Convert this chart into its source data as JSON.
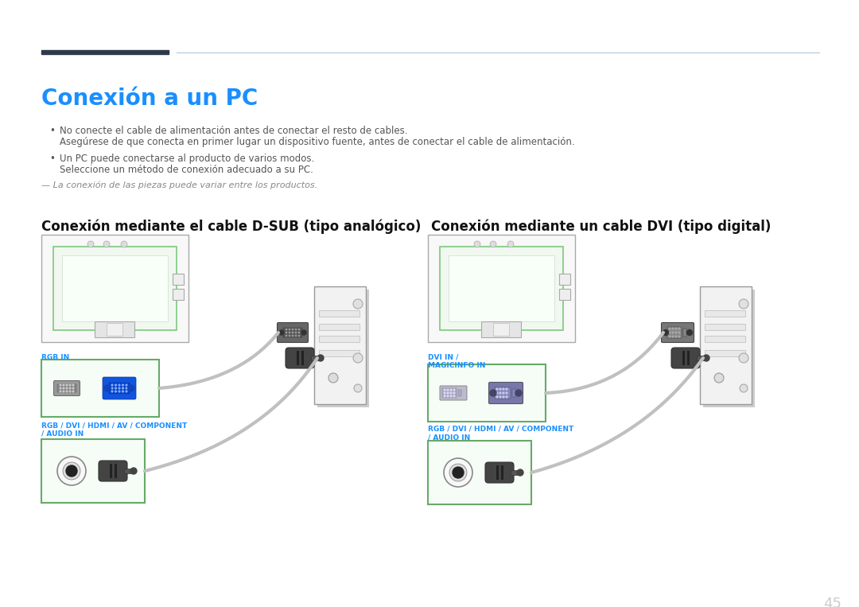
{
  "bg_color": "#ffffff",
  "title": "Conexión a un PC",
  "title_color": "#1a8fff",
  "title_fontsize": 20,
  "header_line_dark_color": "#2d3a4a",
  "header_line_light_color": "#b0c8d8",
  "bullet_text_color": "#555555",
  "bullet_fontsize": 8.5,
  "note_color": "#888888",
  "note_fontsize": 8,
  "section1_title": "Conexión mediante el cable D-SUB (tipo analógico)",
  "section2_title": "Conexión mediante un cable DVI (tipo digital)",
  "section_title_fontsize": 12,
  "section_title_color": "#111111",
  "label_rgb_in": "RGB IN",
  "label_rgb_dvi": "RGB / DVI / HDMI / AV / COMPONENT\n/ AUDIO IN",
  "label_dvi_in": "DVI IN /\nMAGICINFO IN",
  "label_rgb_dvi2": "RGB / DVI / HDMI / AV / COMPONENT\n/ AUDIO IN",
  "label_color": "#1a8fff",
  "label_fontsize": 6.5,
  "page_number": "45",
  "page_number_color": "#cccccc",
  "page_number_fontsize": 13,
  "bullet1_line1": "No conecte el cable de alimentación antes de conectar el resto de cables.",
  "bullet1_line2": "Asegúrese de que conecta en primer lugar un dispositivo fuente, antes de conectar el cable de alimentación.",
  "bullet2_line1": "Un PC puede conectarse al producto de varios modos.",
  "bullet2_line2": "Seleccione un método de conexión adecuado a su PC.",
  "note_text": "— La conexión de las piezas puede variar entre los productos."
}
